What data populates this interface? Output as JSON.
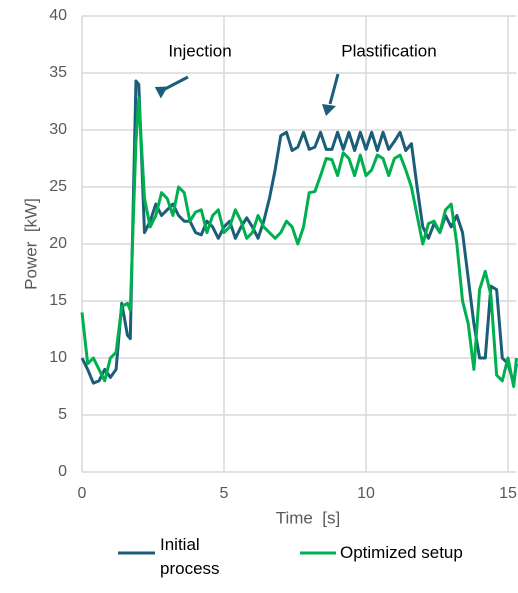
{
  "chart_data": {
    "type": "line",
    "xlabel": "Time  [s]",
    "ylabel": "Power  [kW]",
    "x": [
      0,
      0.2,
      0.4,
      0.6,
      0.8,
      1.0,
      1.2,
      1.4,
      1.6,
      1.7,
      1.9,
      2.0,
      2.2,
      2.4,
      2.6,
      2.8,
      3.0,
      3.2,
      3.4,
      3.6,
      3.8,
      4.0,
      4.2,
      4.4,
      4.6,
      4.8,
      5.0,
      5.2,
      5.4,
      5.6,
      5.8,
      6.0,
      6.2,
      6.4,
      6.6,
      6.8,
      7.0,
      7.2,
      7.4,
      7.6,
      7.8,
      8.0,
      8.2,
      8.4,
      8.6,
      8.8,
      9.0,
      9.2,
      9.4,
      9.6,
      9.8,
      10.0,
      10.2,
      10.4,
      10.6,
      10.8,
      11.0,
      11.2,
      11.4,
      11.6,
      11.8,
      12.0,
      12.2,
      12.4,
      12.6,
      12.8,
      13.0,
      13.2,
      13.4,
      13.6,
      13.8,
      14.0,
      14.2,
      14.4,
      14.6,
      14.8,
      15.0,
      15.2,
      15.3
    ],
    "series": [
      {
        "name": "Initial process",
        "color": "#1b5e7a",
        "values": [
          10,
          9,
          7.8,
          8,
          9,
          8.3,
          9,
          14.8,
          12,
          11.7,
          34.3,
          34,
          21,
          22,
          23.5,
          22.5,
          23,
          23.5,
          22.5,
          22,
          22,
          21,
          20.8,
          22,
          21.5,
          20.5,
          21.5,
          22,
          20.5,
          21.5,
          22.3,
          21.5,
          20.5,
          22,
          24,
          26.5,
          29.5,
          29.8,
          28.2,
          28.5,
          29.8,
          28.3,
          28.5,
          29.8,
          28.3,
          28.3,
          29.8,
          28.3,
          29.8,
          28.2,
          29.8,
          28.3,
          29.8,
          28.2,
          29.8,
          28.3,
          29,
          29.8,
          28.2,
          28.8,
          25,
          21.5,
          20.5,
          21.8,
          21,
          22.5,
          21.5,
          22.5,
          21,
          17,
          13,
          10,
          10,
          16.3,
          16,
          10,
          9.5,
          7.8,
          9.5
        ]
      },
      {
        "name": "Optimized setup",
        "color": "#00b050",
        "values": [
          14,
          9.5,
          10,
          9,
          8,
          10,
          10.5,
          14.5,
          14.8,
          14.2,
          29,
          32.8,
          24,
          21.5,
          22.5,
          24.5,
          24,
          22.5,
          25,
          24.5,
          22,
          22.8,
          23,
          21,
          22.5,
          23,
          21,
          21.5,
          23,
          22,
          20.5,
          21,
          22.5,
          21.5,
          21,
          20.5,
          21,
          22,
          21.5,
          20,
          21.5,
          24.5,
          24.6,
          26,
          27.5,
          27.4,
          26,
          28,
          27.5,
          26,
          27.8,
          26,
          26.5,
          27.8,
          27.5,
          26,
          27.5,
          27.8,
          26.5,
          25,
          22.5,
          20,
          21.8,
          22,
          21,
          23,
          23.5,
          20,
          15,
          13,
          9,
          16,
          17.6,
          15.5,
          8.5,
          8,
          10,
          7.5,
          10
        ]
      }
    ],
    "annotations": [
      "Injection",
      "Plastification"
    ],
    "xlim": [
      0,
      15.3
    ],
    "ylim": [
      0,
      40
    ],
    "xticks": [
      0,
      5,
      10,
      15
    ],
    "yticks": [
      0,
      5,
      10,
      15,
      20,
      25,
      30,
      35,
      40
    ],
    "grid": true
  }
}
